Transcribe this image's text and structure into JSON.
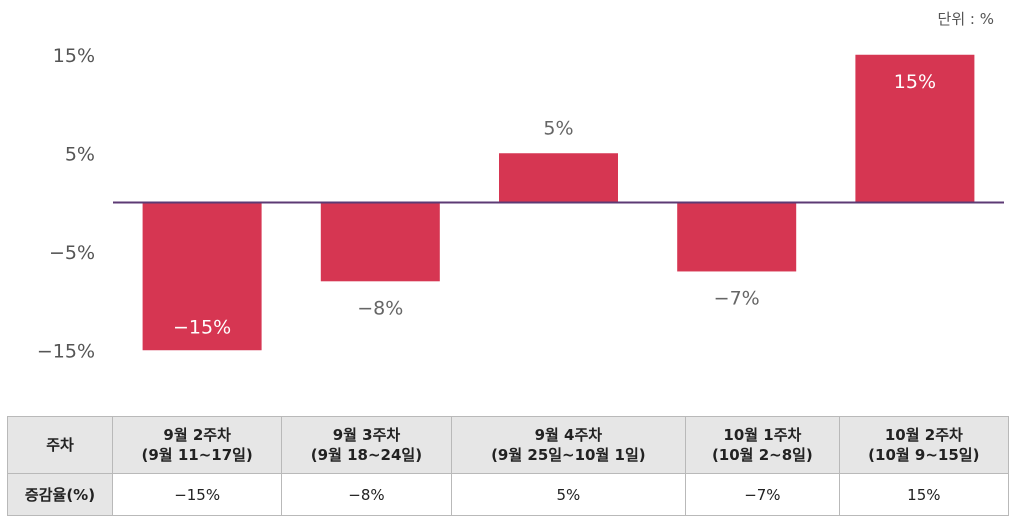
{
  "unit_label": "단위 : %",
  "chart_data": {
    "type": "bar",
    "categories": [
      "9월 2주차 (9월 11~17일)",
      "9월 3주차 (9월 18~24일)",
      "9월 4주차 (9월 25일~10월 1일)",
      "10월 1주차 (10월 2~8일)",
      "10월 2주차 (10월 9~15일)"
    ],
    "values": [
      -15,
      -8,
      5,
      -7,
      15
    ],
    "value_labels": [
      "−15%",
      "−8%",
      "5%",
      "−7%",
      "15%"
    ],
    "y_ticks": [
      15,
      5,
      -5,
      -15
    ],
    "y_tick_labels": [
      "15%",
      "5%",
      "−5%",
      "−15%"
    ],
    "ylim": [
      -15,
      15
    ],
    "bar_color": "#d63652",
    "axis_color": "#5c3a74"
  },
  "table": {
    "header_label": "주차",
    "row_label": "증감율(%)",
    "columns": [
      {
        "line1": "9월 2주차",
        "line2": "(9월 11~17일)",
        "value": "−15%"
      },
      {
        "line1": "9월 3주차",
        "line2": "(9월 18~24일)",
        "value": "−8%"
      },
      {
        "line1": "9월 4주차",
        "line2": "(9월 25일~10월 1일)",
        "value": "5%"
      },
      {
        "line1": "10월 1주차",
        "line2": "(10월 2~8일)",
        "value": "−7%"
      },
      {
        "line1": "10월 2주차",
        "line2": "(10월 9~15일)",
        "value": "15%"
      }
    ]
  }
}
